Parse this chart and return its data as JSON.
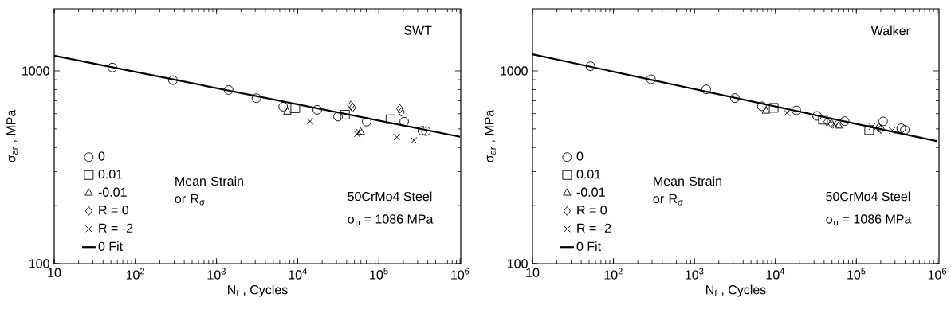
{
  "chart_data": [
    {
      "type": "scatter",
      "xlabel": "N$_{f}$ , Cycles",
      "ylabel": "σ$_{ar}$ , MPa",
      "log": "xy",
      "grid": false,
      "legend": "bottom left",
      "legend_title": "Mean Strain or R$_{σ}$",
      "xlim": [
        10,
        1020000
      ],
      "ylim": [
        100,
        2100
      ],
      "xticks": [
        10,
        {
          "value": 100,
          "label": "10$^{2}$"
        },
        {
          "value": 1000,
          "label": "10$^{3}$"
        },
        {
          "value": 10000,
          "label": "10$^{4}$"
        },
        {
          "value": 100000,
          "label": "10$^{5}$"
        },
        {
          "value": 1000000,
          "label": "10$^{6}$"
        }
      ],
      "yticks": [
        100,
        1000
      ],
      "annotations": [
        "SWT",
        "50CrMo4 Steel",
        "σ$_{u}$ = 1086 MPa"
      ],
      "series": [
        {
          "name": "0",
          "marker": "circle",
          "color": "#000000",
          "x": [
            52,
            290,
            1410,
            3100,
            6620,
            17400,
            31400,
            70700,
            205000,
            344000,
            381000
          ],
          "values": [
            1041,
            895,
            796,
            722,
            652,
            628,
            579,
            545,
            545,
            489,
            487
          ]
        },
        {
          "name": "0.01",
          "marker": "square",
          "color": "#000000",
          "x": [
            9330,
            38200,
            139000
          ],
          "values": [
            640,
            593,
            561
          ]
        },
        {
          "name": "-0.01",
          "marker": "triangle",
          "color": "#000000",
          "x": [
            7460,
            59600
          ],
          "values": [
            612,
            481
          ]
        },
        {
          "name": "R = 0",
          "marker": "diamond",
          "color": "#000000",
          "x": [
            45300,
            47300,
            181000,
            189000
          ],
          "values": [
            662,
            645,
            636,
            612
          ]
        },
        {
          "name": "R = -2",
          "marker": "cross",
          "color": "#000000",
          "x": [
            14200,
            53800,
            57100,
            166000,
            270000
          ],
          "values": [
            547,
            470,
            481,
            453,
            436
          ]
        },
        {
          "name": "0 Fit",
          "type": "line",
          "marker": "none",
          "line_style": "solid",
          "color": "#000000",
          "x": [
            10,
            1000000
          ],
          "values": [
            1200,
            455
          ]
        }
      ]
    },
    {
      "type": "scatter",
      "xlabel": "N$_{f}$ , Cycles",
      "ylabel": "σ$_{ar}$ , MPa",
      "log": "xy",
      "grid": false,
      "legend": "bottom left",
      "legend_title": "Mean Strain or R$_{σ}$",
      "xlim": [
        10,
        1050000
      ],
      "ylim": [
        100,
        2100
      ],
      "xticks": [
        10,
        {
          "value": 100,
          "label": "10$^{2}$"
        },
        {
          "value": 1000,
          "label": "10$^{3}$"
        },
        {
          "value": 10000,
          "label": "10$^{4}$"
        },
        {
          "value": 100000,
          "label": "10$^{5}$"
        },
        {
          "value": 1000000,
          "label": "10$^{6}$"
        }
      ],
      "yticks": [
        100,
        1000
      ],
      "annotations": [
        "Walker",
        "50CrMo4 Steel",
        "σ$_{u}$ = 1086 MPa"
      ],
      "series": [
        {
          "name": "0",
          "marker": "circle",
          "color": "#000000",
          "x": [
            52,
            291,
            1400,
            3160,
            6820,
            18100,
            32700,
            71800,
            214000,
            358000,
            397000
          ],
          "values": [
            1057,
            905,
            802,
            723,
            655,
            624,
            584,
            548,
            547,
            504,
            494
          ]
        },
        {
          "name": "0.01",
          "marker": "square",
          "color": "#000000",
          "x": [
            9530,
            38700,
            144000
          ],
          "values": [
            643,
            558,
            493
          ]
        },
        {
          "name": "-0.01",
          "marker": "triangle",
          "color": "#000000",
          "x": [
            7640,
            60500
          ],
          "values": [
            619,
            518
          ]
        },
        {
          "name": "R = 0",
          "marker": "diamond",
          "color": "#000000",
          "x": [
            43400,
            49200,
            189000,
            202000
          ],
          "values": [
            545,
            531,
            508,
            499
          ]
        },
        {
          "name": "R = -2",
          "marker": "cross",
          "color": "#000000",
          "x": [
            13900,
            52400,
            55500,
            156000,
            277000
          ],
          "values": [
            605,
            531,
            521,
            513,
            491
          ]
        },
        {
          "name": "0 Fit",
          "type": "line",
          "marker": "none",
          "line_style": "solid",
          "color": "#000000",
          "x": [
            10,
            1000000
          ],
          "values": [
            1220,
            431
          ]
        }
      ]
    }
  ]
}
